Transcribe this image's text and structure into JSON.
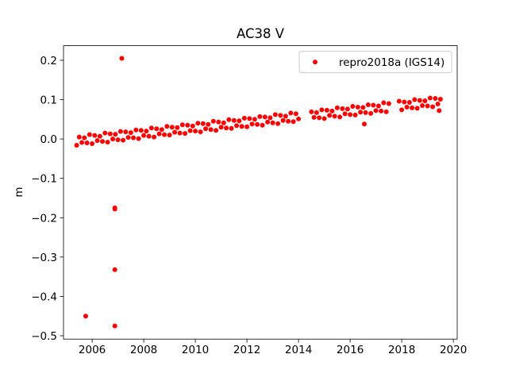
{
  "chart_data": {
    "type": "scatter",
    "title": "AC38 V",
    "ylabel": "m",
    "legend": "upper right",
    "series": [
      {
        "name": "repro2018a (IGS14)",
        "color": "#ff0000",
        "x": [
          2005.4,
          2005.5,
          2005.6,
          2005.7,
          2005.8,
          2005.9,
          2006.0,
          2006.1,
          2006.2,
          2006.3,
          2006.4,
          2006.5,
          2006.6,
          2006.7,
          2006.8,
          2006.9,
          2007.0,
          2007.1,
          2007.2,
          2007.3,
          2007.4,
          2007.5,
          2007.6,
          2007.7,
          2007.8,
          2007.9,
          2008.0,
          2008.1,
          2008.2,
          2008.3,
          2008.4,
          2008.5,
          2008.6,
          2008.7,
          2008.8,
          2008.9,
          2009.0,
          2009.1,
          2009.2,
          2009.3,
          2009.4,
          2009.5,
          2009.6,
          2009.7,
          2009.8,
          2009.9,
          2010.0,
          2010.1,
          2010.2,
          2010.3,
          2010.4,
          2010.5,
          2010.6,
          2010.7,
          2010.8,
          2010.9,
          2011.0,
          2011.1,
          2011.2,
          2011.3,
          2011.4,
          2011.5,
          2011.6,
          2011.7,
          2011.8,
          2011.9,
          2012.0,
          2012.1,
          2012.2,
          2012.3,
          2012.4,
          2012.5,
          2012.6,
          2012.7,
          2012.8,
          2012.9,
          2013.0,
          2013.1,
          2013.2,
          2013.3,
          2013.4,
          2013.5,
          2013.6,
          2013.7,
          2013.8,
          2013.9,
          2014.0,
          2014.5,
          2014.6,
          2014.7,
          2014.8,
          2014.9,
          2015.0,
          2015.1,
          2015.2,
          2015.3,
          2015.4,
          2015.5,
          2015.6,
          2015.7,
          2015.8,
          2015.9,
          2016.0,
          2016.1,
          2016.2,
          2016.3,
          2016.4,
          2016.5,
          2016.6,
          2016.7,
          2016.8,
          2016.9,
          2017.0,
          2017.1,
          2017.2,
          2017.3,
          2017.4,
          2017.5,
          2017.9,
          2018.0,
          2018.1,
          2018.2,
          2018.3,
          2018.4,
          2018.5,
          2018.6,
          2018.7,
          2018.8,
          2018.9,
          2019.0,
          2019.1,
          2019.2,
          2019.3,
          2019.4,
          2019.5,
          2005.75,
          2006.88,
          2006.88,
          2006.88,
          2006.88,
          2007.15,
          2016.55,
          2019.45
        ],
        "values": [
          -0.016,
          0.005,
          -0.009,
          0.003,
          -0.01,
          0.011,
          -0.012,
          0.009,
          -0.004,
          0.007,
          -0.006,
          0.015,
          -0.008,
          0.013,
          0.0,
          0.012,
          -0.002,
          0.019,
          -0.003,
          0.018,
          0.004,
          0.016,
          0.003,
          0.023,
          0.001,
          0.022,
          0.009,
          0.02,
          0.007,
          0.028,
          0.005,
          0.026,
          0.013,
          0.024,
          0.011,
          0.032,
          0.01,
          0.03,
          0.017,
          0.029,
          0.015,
          0.036,
          0.014,
          0.035,
          0.021,
          0.033,
          0.02,
          0.04,
          0.018,
          0.039,
          0.026,
          0.037,
          0.024,
          0.045,
          0.022,
          0.043,
          0.03,
          0.041,
          0.028,
          0.049,
          0.027,
          0.047,
          0.034,
          0.046,
          0.032,
          0.053,
          0.031,
          0.052,
          0.038,
          0.05,
          0.037,
          0.057,
          0.035,
          0.056,
          0.043,
          0.054,
          0.041,
          0.062,
          0.039,
          0.06,
          0.047,
          0.058,
          0.045,
          0.066,
          0.044,
          0.064,
          0.051,
          0.069,
          0.055,
          0.067,
          0.054,
          0.074,
          0.052,
          0.073,
          0.06,
          0.071,
          0.058,
          0.079,
          0.056,
          0.077,
          0.064,
          0.076,
          0.062,
          0.083,
          0.061,
          0.081,
          0.068,
          0.08,
          0.067,
          0.087,
          0.065,
          0.086,
          0.072,
          0.084,
          0.071,
          0.092,
          0.069,
          0.09,
          0.096,
          0.074,
          0.094,
          0.081,
          0.093,
          0.079,
          0.1,
          0.078,
          0.098,
          0.085,
          0.097,
          0.084,
          0.104,
          0.082,
          0.103,
          0.089,
          0.101,
          -0.45,
          -0.475,
          -0.332,
          -0.175,
          -0.178,
          0.205,
          0.038,
          0.072
        ]
      }
    ],
    "xlim": [
      2004.89,
      2020.15
    ],
    "xticks": [
      2006,
      2008,
      2010,
      2012,
      2014,
      2016,
      2018,
      2020
    ],
    "ylim": [
      -0.5085,
      0.237
    ],
    "yticks": [
      {
        "value": -0.5,
        "label": "−0.5"
      },
      {
        "value": -0.4,
        "label": "−0.4"
      },
      {
        "value": -0.3,
        "label": "−0.3"
      },
      {
        "value": -0.2,
        "label": "−0.2"
      },
      {
        "value": -0.1,
        "label": "−0.1"
      },
      {
        "value": 0.0,
        "label": "0.0"
      },
      0.1,
      0.2
    ],
    "grid": false
  }
}
